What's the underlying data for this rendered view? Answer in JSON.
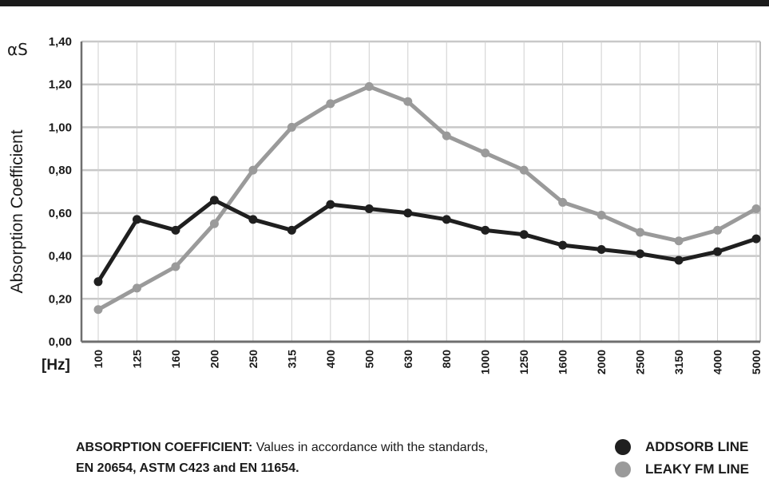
{
  "chart_data": {
    "type": "line",
    "ylabel": "Absorption Coefficient",
    "ysymbol": "αS",
    "xunit": "[Hz]",
    "categories": [
      "100",
      "125",
      "160",
      "200",
      "250",
      "315",
      "400",
      "500",
      "630",
      "800",
      "1000",
      "1250",
      "1600",
      "2000",
      "2500",
      "3150",
      "4000",
      "5000"
    ],
    "yticks": [
      "0,00",
      "0,20",
      "0,40",
      "0,60",
      "0,80",
      "1,00",
      "1,20",
      "1,40"
    ],
    "ylim": [
      0,
      1.4
    ],
    "grid": true,
    "series": [
      {
        "name": "ADDSORB LINE",
        "color": "#1f1f1f",
        "values": [
          0.28,
          0.57,
          0.52,
          0.66,
          0.57,
          0.52,
          0.64,
          0.62,
          0.6,
          0.57,
          0.52,
          0.5,
          0.45,
          0.43,
          0.41,
          0.38,
          0.42,
          0.48
        ]
      },
      {
        "name": "LEAKY FM LINE",
        "color": "#9a9a9a",
        "values": [
          0.15,
          0.25,
          0.35,
          0.55,
          0.8,
          1.0,
          1.11,
          1.19,
          1.12,
          0.96,
          0.88,
          0.8,
          0.65,
          0.59,
          0.51,
          0.47,
          0.52,
          0.62
        ]
      }
    ]
  },
  "footnote": {
    "bold": "ABSORPTION COEFFICIENT:",
    "line1_rest": " Values in accordance with the standards,",
    "line2": "EN 20654, ASTM C423 and EN 11654."
  },
  "legend": [
    {
      "label": "ADDSORB LINE",
      "color": "#1f1f1f"
    },
    {
      "label": "LEAKY FM LINE",
      "color": "#9a9a9a"
    }
  ]
}
